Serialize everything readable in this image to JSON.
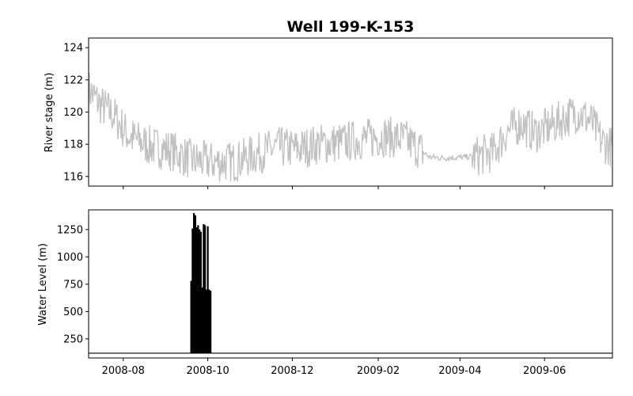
{
  "chart_data": {
    "title": "Well 199-K-153",
    "type": "line",
    "x_ticks": [
      "2008-08",
      "2008-10",
      "2008-12",
      "2009-02",
      "2009-04",
      "2009-06"
    ],
    "x_range": [
      "2008-07-07",
      "2009-07-20"
    ],
    "panels": [
      {
        "ylabel": "River stage (m)",
        "ylim": [
          115.4,
          124.6
        ],
        "y_ticks": [
          116,
          118,
          120,
          122,
          124
        ],
        "series": [
          {
            "color": "#c0c0c0",
            "style": "noisy daily fluctuation",
            "points": [
              [
                "2008-07-07",
                121.4
              ],
              [
                "2008-07-15",
                120.5
              ],
              [
                "2008-07-25",
                119.8
              ],
              [
                "2008-08-05",
                118.5
              ],
              [
                "2008-08-20",
                117.9
              ],
              [
                "2008-09-05",
                117.6
              ],
              [
                "2008-09-20",
                117.0
              ],
              [
                "2008-10-05",
                116.9
              ],
              [
                "2008-10-20",
                116.9
              ],
              [
                "2008-11-05",
                117.4
              ],
              [
                "2008-11-20",
                117.8
              ],
              [
                "2008-12-05",
                117.7
              ],
              [
                "2008-12-20",
                118.0
              ],
              [
                "2009-01-05",
                118.1
              ],
              [
                "2009-01-20",
                118.3
              ],
              [
                "2009-02-05",
                118.5
              ],
              [
                "2009-02-20",
                118.3
              ],
              [
                "2009-03-01",
                117.8
              ],
              [
                "2009-03-10",
                117.2
              ],
              [
                "2009-03-20",
                117.15
              ],
              [
                "2009-04-05",
                117.2
              ],
              [
                "2009-04-15",
                117.3
              ],
              [
                "2009-04-25",
                117.5
              ],
              [
                "2009-05-05",
                118.8
              ],
              [
                "2009-05-15",
                119.3
              ],
              [
                "2009-05-25",
                118.7
              ],
              [
                "2009-06-05",
                119.1
              ],
              [
                "2009-06-15",
                119.6
              ],
              [
                "2009-06-25",
                120.0
              ],
              [
                "2009-07-05",
                119.4
              ],
              [
                "2009-07-12",
                118.2
              ],
              [
                "2009-07-20",
                117.8
              ]
            ]
          }
        ]
      },
      {
        "ylabel": "Water Level (m)",
        "ylim": [
          75,
          1430
        ],
        "y_ticks": [
          250,
          500,
          750,
          1000,
          1250
        ],
        "series": [
          {
            "color": "#000000",
            "baseline": 119,
            "spikes": [
              [
                "2008-09-19",
                780
              ],
              [
                "2008-09-20",
                1260
              ],
              [
                "2008-09-21",
                1400
              ],
              [
                "2008-09-22",
                1380
              ],
              [
                "2008-09-23",
                1270
              ],
              [
                "2008-09-24",
                1290
              ],
              [
                "2008-09-25",
                1250
              ],
              [
                "2008-09-26",
                1230
              ],
              [
                "2008-09-27",
                720
              ],
              [
                "2008-09-28",
                1300
              ],
              [
                "2008-09-29",
                1290
              ],
              [
                "2008-09-30",
                700
              ],
              [
                "2008-10-01",
                1280
              ],
              [
                "2008-10-02",
                700
              ],
              [
                "2008-10-03",
                690
              ]
            ]
          }
        ]
      }
    ],
    "grid": false,
    "legend": "none"
  }
}
